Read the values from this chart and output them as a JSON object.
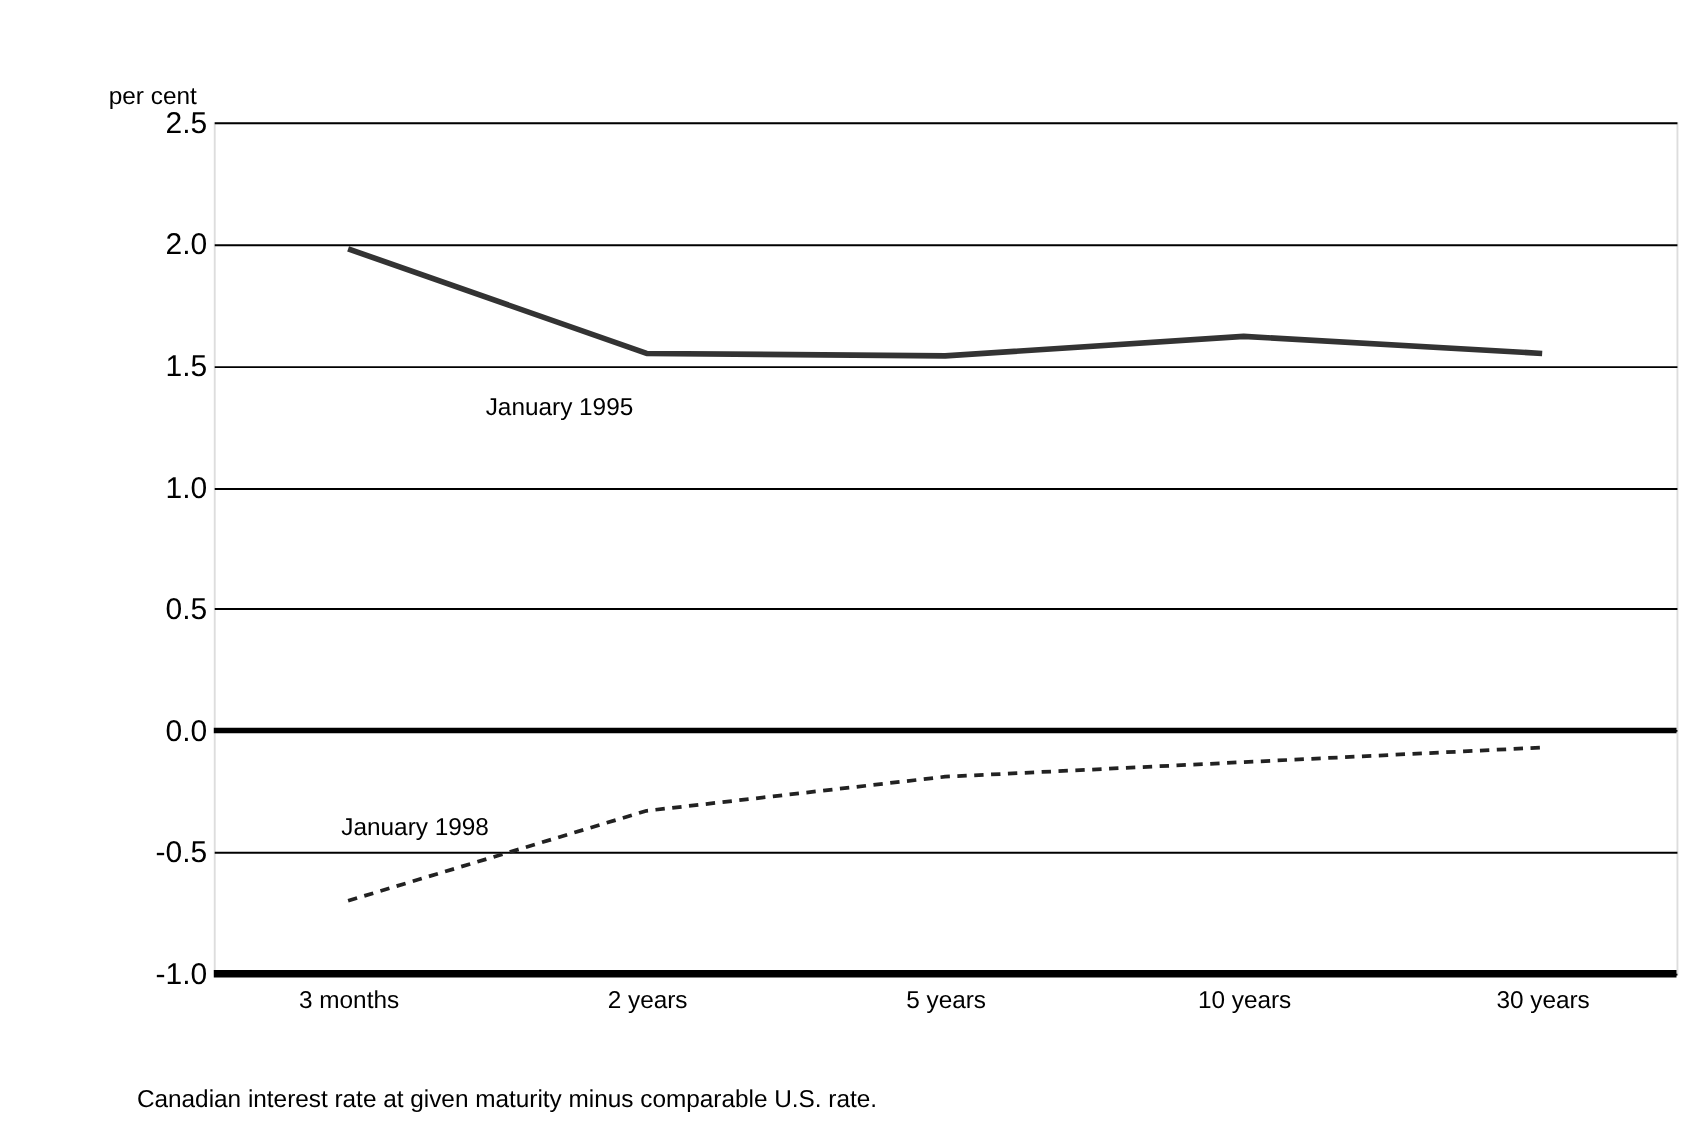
{
  "chart_data": {
    "type": "line",
    "ylabel": "per cent",
    "categories": [
      "3 months",
      "2 years",
      "5 years",
      "10 years",
      "30 years"
    ],
    "series": [
      {
        "name": "January 1995",
        "color": "#333333",
        "line_style": "solid",
        "values": [
          1.98,
          1.55,
          1.54,
          1.62,
          1.55
        ]
      },
      {
        "name": "January 1998",
        "color": "#222222",
        "line_style": "dashed",
        "values": [
          -0.7,
          -0.33,
          -0.19,
          -0.13,
          -0.07
        ]
      }
    ],
    "ylim": [
      -1.0,
      2.5
    ],
    "yticks": [
      {
        "value": -1.0,
        "label": "-1.0"
      },
      {
        "value": -0.5,
        "label": "-0.5"
      },
      {
        "value": 0,
        "label": "0.0"
      },
      {
        "value": 0.5,
        "label": "0.5"
      },
      {
        "value": 1.0,
        "label": "1.0"
      },
      {
        "value": 1.5,
        "label": "1.5"
      },
      {
        "value": 2.0,
        "label": "2.0"
      },
      {
        "value": 2.5,
        "label": "2.5"
      }
    ],
    "grid": "y",
    "legend": false,
    "marker": "none",
    "ref_lines": [
      {
        "axis": "y",
        "value": 0,
        "label": null
      }
    ],
    "annotations": [
      "Canadian interest rate at given maturity minus comparable U.S. rate."
    ]
  }
}
